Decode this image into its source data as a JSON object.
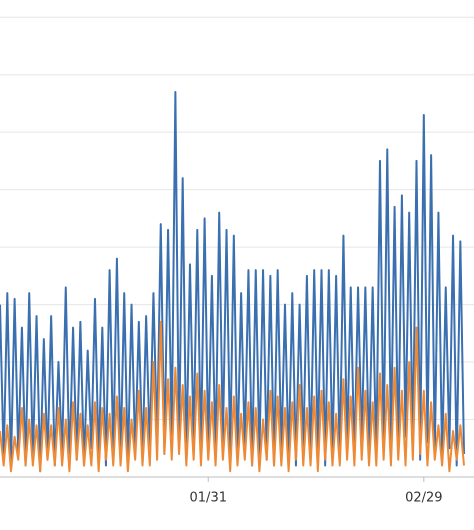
{
  "chart_data": {
    "type": "line",
    "categories": [
      null,
      null,
      null,
      null,
      null,
      null,
      null,
      null,
      null,
      null,
      null,
      null,
      null,
      null,
      null,
      null,
      null,
      null,
      null,
      null,
      null,
      null,
      null,
      null,
      null,
      null,
      null,
      null,
      null,
      null,
      null,
      null,
      null,
      null,
      null,
      null,
      null,
      null,
      null,
      null,
      null,
      null,
      null,
      null,
      null,
      null,
      null,
      null,
      null,
      null,
      null,
      null,
      null,
      null,
      null,
      null,
      null,
      "01/31",
      null,
      null,
      null,
      null,
      null,
      null,
      null,
      null,
      null,
      null,
      null,
      null,
      null,
      null,
      null,
      null,
      null,
      null,
      null,
      null,
      null,
      null,
      null,
      null,
      null,
      null,
      null,
      null,
      null,
      null,
      null,
      null,
      null,
      null,
      null,
      null,
      null,
      null,
      null,
      null,
      null,
      null,
      null,
      null,
      null,
      null,
      null,
      null,
      null,
      null,
      null,
      null,
      null,
      null,
      null,
      null,
      null,
      null,
      "02/29",
      null,
      null,
      null,
      null,
      null,
      null,
      null,
      null,
      null,
      null,
      null
    ],
    "series": [
      {
        "color": "#3a6fb0",
        "values": [
          3.0,
          0.3,
          3.2,
          0.2,
          3.1,
          0.4,
          2.6,
          0.2,
          3.2,
          0.3,
          2.8,
          0.1,
          2.4,
          0.3,
          2.8,
          0.2,
          2.0,
          0.4,
          3.3,
          0.2,
          2.6,
          0.3,
          2.7,
          0.2,
          2.2,
          0.5,
          3.1,
          0.3,
          2.6,
          0.2,
          3.6,
          0.4,
          3.8,
          0.3,
          3.2,
          0.2,
          3.0,
          0.4,
          2.7,
          0.3,
          2.8,
          0.5,
          3.2,
          0.6,
          4.4,
          0.4,
          4.3,
          0.7,
          6.7,
          0.5,
          5.2,
          0.3,
          3.7,
          0.6,
          4.3,
          0.4,
          4.5,
          0.5,
          3.5,
          0.3,
          4.6,
          0.6,
          4.3,
          0.4,
          4.2,
          0.3,
          3.2,
          0.5,
          3.6,
          0.2,
          3.6,
          0.4,
          3.6,
          0.3,
          3.5,
          0.2,
          3.6,
          0.4,
          3.0,
          0.3,
          3.2,
          0.2,
          3.0,
          0.4,
          3.5,
          0.3,
          3.6,
          0.5,
          3.6,
          0.2,
          3.6,
          0.4,
          3.5,
          0.3,
          4.2,
          0.5,
          3.3,
          0.3,
          3.3,
          0.6,
          3.3,
          0.4,
          3.3,
          0.3,
          5.5,
          0.5,
          5.7,
          0.6,
          4.7,
          0.4,
          4.9,
          0.7,
          4.6,
          0.5,
          5.5,
          0.3,
          6.3,
          0.6,
          5.6,
          0.4,
          4.6,
          0.3,
          3.3,
          0.5,
          4.2,
          0.2,
          4.1,
          0.4
        ]
      },
      {
        "color": "#ee8a35",
        "values": [
          0.8,
          0.2,
          0.9,
          0.1,
          0.7,
          0.3,
          1.2,
          0.2,
          1.0,
          0.2,
          0.9,
          0.1,
          1.1,
          0.3,
          0.9,
          0.2,
          1.2,
          0.2,
          1.0,
          0.1,
          1.3,
          0.3,
          1.1,
          0.2,
          0.9,
          0.2,
          1.3,
          0.1,
          1.2,
          0.3,
          1.1,
          0.2,
          1.4,
          0.2,
          1.2,
          0.1,
          1.0,
          0.3,
          1.5,
          0.2,
          1.2,
          0.2,
          2.0,
          0.3,
          2.7,
          0.4,
          1.7,
          0.3,
          1.9,
          0.4,
          1.6,
          0.2,
          1.4,
          0.3,
          1.8,
          0.2,
          1.5,
          0.3,
          1.3,
          0.2,
          1.6,
          0.3,
          1.2,
          0.1,
          1.4,
          0.2,
          1.1,
          0.3,
          1.3,
          0.2,
          1.2,
          0.1,
          1.0,
          0.3,
          1.5,
          0.2,
          1.4,
          0.2,
          1.2,
          0.1,
          1.3,
          0.3,
          1.6,
          0.2,
          1.2,
          0.2,
          1.4,
          0.1,
          1.5,
          0.3,
          1.3,
          0.2,
          1.1,
          0.2,
          1.7,
          0.3,
          1.4,
          0.2,
          1.9,
          0.3,
          1.5,
          0.2,
          1.3,
          0.2,
          1.8,
          0.3,
          1.6,
          0.2,
          1.9,
          0.3,
          1.5,
          0.2,
          2.0,
          0.3,
          2.6,
          0.4,
          1.5,
          0.2,
          1.3,
          0.3,
          0.9,
          0.2,
          1.1,
          0.1,
          0.8,
          0.3,
          0.9,
          0.2
        ]
      }
    ],
    "ylim": [
      0,
      8.3
    ],
    "yticks": [
      0,
      1,
      2,
      3,
      4,
      5,
      6,
      7,
      8
    ],
    "grid": true
  }
}
